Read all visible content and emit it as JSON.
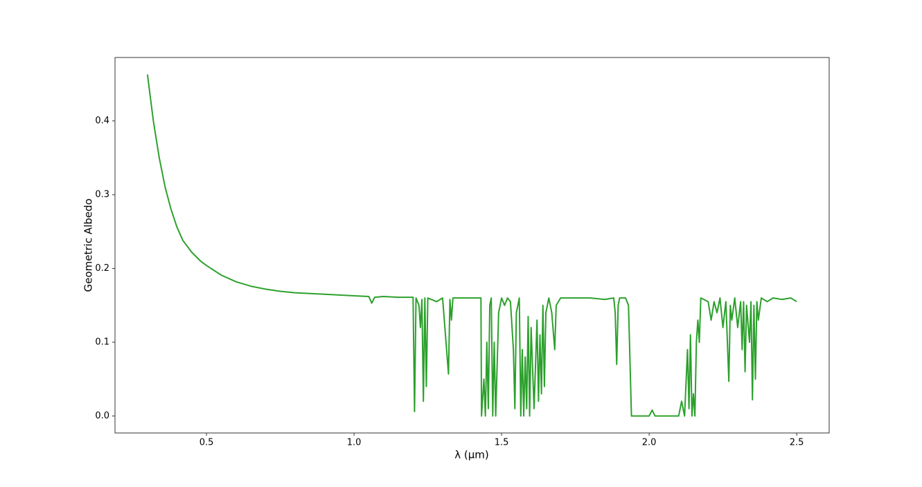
{
  "chart_data": {
    "type": "line",
    "xlabel": "λ (μm)",
    "ylabel": "Geometric Albedo",
    "color": "#2ca02c",
    "x": [
      0.3,
      0.32,
      0.34,
      0.36,
      0.38,
      0.4,
      0.42,
      0.45,
      0.48,
      0.5,
      0.55,
      0.6,
      0.65,
      0.7,
      0.75,
      0.8,
      0.9,
      1.0,
      1.05,
      1.06,
      1.07,
      1.1,
      1.15,
      1.2,
      1.205,
      1.21,
      1.22,
      1.225,
      1.23,
      1.235,
      1.24,
      1.245,
      1.25,
      1.28,
      1.3,
      1.32,
      1.325,
      1.33,
      1.335,
      1.4,
      1.43,
      1.432,
      1.44,
      1.445,
      1.45,
      1.455,
      1.46,
      1.465,
      1.47,
      1.475,
      1.48,
      1.49,
      1.5,
      1.51,
      1.52,
      1.53,
      1.54,
      1.545,
      1.55,
      1.56,
      1.565,
      1.57,
      1.575,
      1.58,
      1.585,
      1.59,
      1.595,
      1.6,
      1.61,
      1.62,
      1.625,
      1.63,
      1.635,
      1.64,
      1.645,
      1.65,
      1.66,
      1.67,
      1.68,
      1.685,
      1.7,
      1.8,
      1.85,
      1.88,
      1.885,
      1.89,
      1.895,
      1.9,
      1.92,
      1.93,
      1.94,
      2.0,
      2.01,
      2.02,
      2.1,
      2.11,
      2.12,
      2.13,
      2.135,
      2.14,
      2.145,
      2.15,
      2.155,
      2.16,
      2.165,
      2.17,
      2.175,
      2.2,
      2.21,
      2.22,
      2.23,
      2.24,
      2.25,
      2.26,
      2.27,
      2.275,
      2.28,
      2.29,
      2.3,
      2.31,
      2.315,
      2.32,
      2.325,
      2.33,
      2.34,
      2.345,
      2.35,
      2.355,
      2.36,
      2.365,
      2.37,
      2.38,
      2.4,
      2.42,
      2.45,
      2.48,
      2.5
    ],
    "values": [
      0.463,
      0.4,
      0.35,
      0.31,
      0.28,
      0.256,
      0.238,
      0.222,
      0.21,
      0.204,
      0.191,
      0.182,
      0.176,
      0.172,
      0.169,
      0.167,
      0.165,
      0.163,
      0.162,
      0.153,
      0.161,
      0.162,
      0.161,
      0.161,
      0.006,
      0.16,
      0.15,
      0.12,
      0.158,
      0.02,
      0.16,
      0.04,
      0.16,
      0.155,
      0.16,
      0.057,
      0.158,
      0.13,
      0.16,
      0.16,
      0.16,
      0.0,
      0.05,
      0.0,
      0.1,
      0.01,
      0.15,
      0.16,
      0.0,
      0.1,
      0.0,
      0.14,
      0.16,
      0.15,
      0.16,
      0.155,
      0.09,
      0.01,
      0.14,
      0.16,
      0.0,
      0.09,
      0.0,
      0.08,
      0.01,
      0.135,
      0.0,
      0.12,
      0.01,
      0.13,
      0.02,
      0.11,
      0.03,
      0.15,
      0.04,
      0.14,
      0.16,
      0.14,
      0.09,
      0.15,
      0.16,
      0.16,
      0.158,
      0.16,
      0.14,
      0.07,
      0.15,
      0.16,
      0.16,
      0.15,
      0.0,
      0.0,
      0.008,
      0.0,
      0.0,
      0.02,
      0.0,
      0.09,
      0.01,
      0.11,
      0.0,
      0.03,
      0.0,
      0.1,
      0.13,
      0.1,
      0.16,
      0.155,
      0.13,
      0.155,
      0.14,
      0.16,
      0.12,
      0.155,
      0.047,
      0.15,
      0.13,
      0.16,
      0.12,
      0.155,
      0.09,
      0.155,
      0.06,
      0.15,
      0.1,
      0.155,
      0.022,
      0.15,
      0.05,
      0.155,
      0.13,
      0.16,
      0.155,
      0.16,
      0.158,
      0.16,
      0.155
    ],
    "xlim": [
      0.19,
      2.61
    ],
    "ylim": [
      -0.023,
      0.486
    ],
    "xticks": [
      0.5,
      {
        "value": 1,
        "label": "1.0"
      },
      1.5,
      {
        "value": 2,
        "label": "2.0"
      },
      2.5
    ],
    "yticks": [
      {
        "value": 0,
        "label": "0.0"
      },
      0.1,
      0.2,
      0.3,
      0.4
    ]
  }
}
